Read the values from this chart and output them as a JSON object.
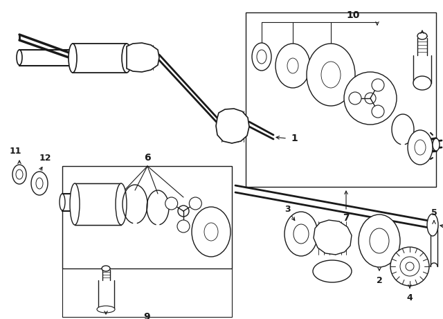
{
  "bg_color": "#ffffff",
  "line_color": "#1a1a1a",
  "fig_width": 6.4,
  "fig_height": 4.61,
  "dpi": 100
}
